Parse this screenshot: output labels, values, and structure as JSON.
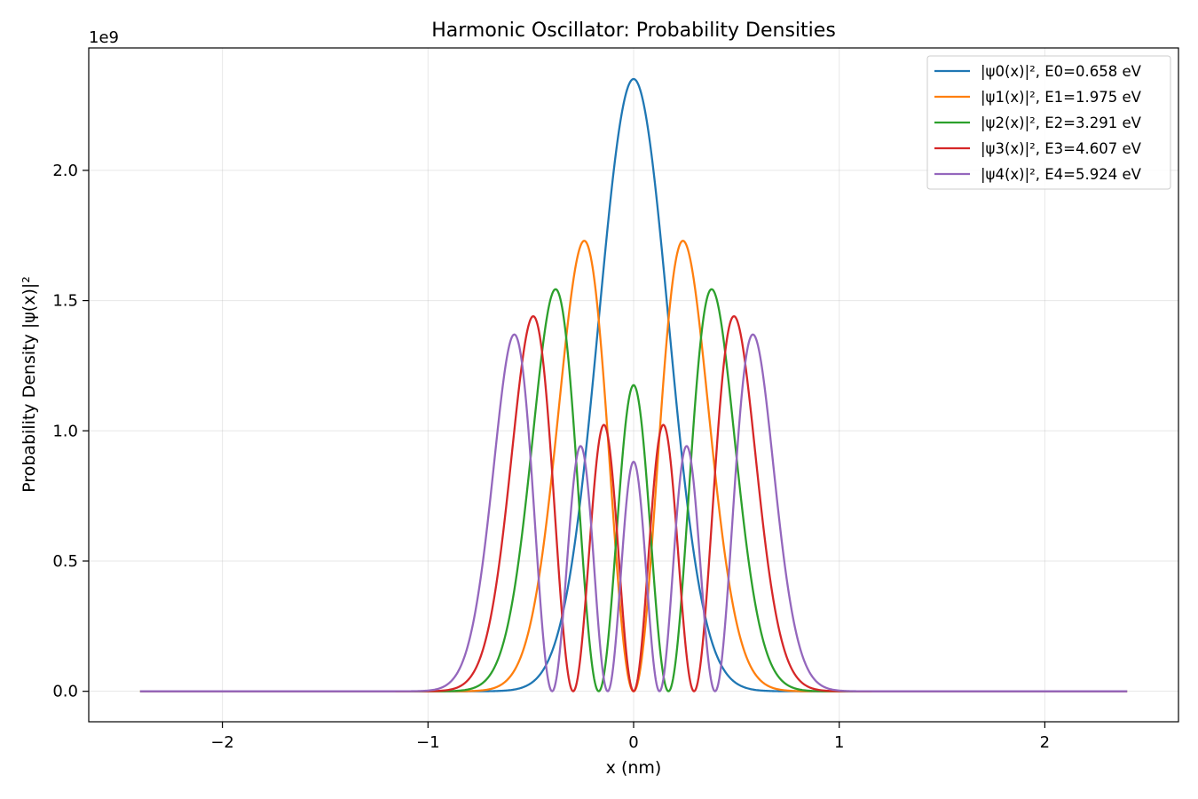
{
  "chart_data": {
    "type": "line",
    "title": "Harmonic Oscillator: Probability Densities",
    "xlabel": "x (nm)",
    "ylabel": "Probability Density |ψ(x)|²",
    "y_offset_label": "1e9",
    "y_scale_factor": 1000000000,
    "xlim": [
      -2.65,
      2.65
    ],
    "ylim": [
      -0.117,
      2.47
    ],
    "x_range": [
      -2.4,
      2.4
    ],
    "x_ticks": [
      -2,
      -1,
      0,
      1,
      2
    ],
    "x_tick_labels": [
      "−2",
      "−1",
      "0",
      "1",
      "2"
    ],
    "y_ticks": [
      0.0,
      0.5,
      1.0,
      1.5,
      2.0
    ],
    "y_tick_labels": [
      "0.0",
      "0.5",
      "1.0",
      "1.5",
      "2.0"
    ],
    "grid": true,
    "legend_position": "top-right",
    "oscillator_width_nm": 0.24,
    "series": [
      {
        "name": "|ψ0(x)|², E0=0.658 eV",
        "n": 0,
        "color": "#1f77b4"
      },
      {
        "name": "|ψ1(x)|², E1=1.975 eV",
        "n": 1,
        "color": "#ff7f0e"
      },
      {
        "name": "|ψ2(x)|², E2=3.291 eV",
        "n": 2,
        "color": "#2ca02c"
      },
      {
        "name": "|ψ3(x)|², E3=4.607 eV",
        "n": 3,
        "color": "#d62728"
      },
      {
        "name": "|ψ4(x)|², E4=5.924 eV",
        "n": 4,
        "color": "#9467bd"
      }
    ]
  }
}
